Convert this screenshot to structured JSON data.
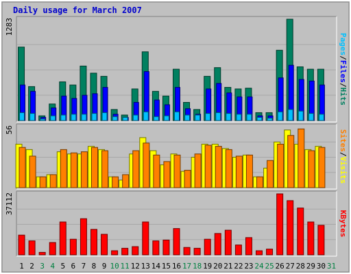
{
  "title": "Daily usage for March 2007",
  "colors": {
    "background": "#c0c0c0",
    "frame_light": "#ffffff",
    "frame_dark": "#808080",
    "title": "#0000cc",
    "hits": "#008060",
    "files": "#0000ff",
    "pages": "#00c0ff",
    "visits": "#ffff00",
    "sites": "#ff8000",
    "kbytes": "#ff0000",
    "weekday_label": "#000000",
    "weekend_label": "#008040"
  },
  "chart_data": [
    {
      "type": "bar",
      "panel": "hits-files-pages",
      "ymax_label": "1283",
      "ylim": [
        0,
        1283
      ],
      "grid": true,
      "legend": [
        {
          "text": "Pages",
          "color_key": "pages"
        },
        {
          "text": "/",
          "color_key": "weekday_label"
        },
        {
          "text": "Files",
          "color_key": "files"
        },
        {
          "text": "/",
          "color_key": "weekday_label"
        },
        {
          "text": "Hits",
          "color_key": "hits"
        }
      ],
      "series": [
        {
          "name": "Hits",
          "color_key": "hits",
          "values": [
            930,
            430,
            60,
            210,
            490,
            450,
            690,
            600,
            560,
            140,
            70,
            400,
            870,
            370,
            310,
            650,
            230,
            140,
            560,
            670,
            420,
            400,
            410,
            100,
            100,
            890,
            1283,
            680,
            650,
            650,
            0
          ]
        },
        {
          "name": "Files",
          "color_key": "files",
          "values": [
            450,
            370,
            40,
            160,
            310,
            280,
            320,
            340,
            420,
            80,
            40,
            230,
            620,
            260,
            200,
            420,
            150,
            80,
            400,
            470,
            350,
            300,
            300,
            60,
            60,
            540,
            700,
            520,
            500,
            450,
            0
          ]
        },
        {
          "name": "Pages",
          "color_key": "pages",
          "values": [
            100,
            90,
            20,
            60,
            70,
            80,
            80,
            90,
            100,
            50,
            40,
            70,
            110,
            50,
            60,
            110,
            70,
            70,
            90,
            100,
            90,
            80,
            80,
            40,
            30,
            110,
            140,
            120,
            90,
            80,
            0
          ]
        }
      ]
    },
    {
      "type": "bar",
      "panel": "visits-sites",
      "ymax_label": "56",
      "ylim": [
        0,
        56
      ],
      "grid": true,
      "legend": [
        {
          "text": "Sites",
          "color_key": "sites"
        },
        {
          "text": "/",
          "color_key": "weekday_label"
        },
        {
          "text": "Visits",
          "color_key": "visits"
        }
      ],
      "series": [
        {
          "name": "Visits",
          "color_key": "visits",
          "values": [
            40,
            35,
            10,
            12,
            33,
            31,
            31,
            38,
            35,
            10,
            7,
            31,
            46,
            34,
            21,
            31,
            15,
            28,
            40,
            40,
            36,
            28,
            30,
            10,
            18,
            42,
            53,
            40,
            35,
            38,
            0
          ]
        },
        {
          "name": "Sites",
          "color_key": "sites",
          "values": [
            37,
            29,
            10,
            12,
            35,
            32,
            33,
            37,
            34,
            10,
            12,
            34,
            41,
            30,
            24,
            30,
            16,
            31,
            39,
            38,
            35,
            29,
            30,
            10,
            25,
            40,
            48,
            54,
            34,
            37,
            0
          ]
        }
      ]
    },
    {
      "type": "bar",
      "panel": "kbytes",
      "ymax_label": "37112",
      "ylim": [
        0,
        37112
      ],
      "grid": true,
      "legend": [
        {
          "text": "KBytes",
          "color_key": "kbytes"
        }
      ],
      "series": [
        {
          "name": "KBytes",
          "color_key": "kbytes",
          "values": [
            12000,
            8500,
            1500,
            7500,
            20000,
            9500,
            22000,
            15500,
            12500,
            2500,
            4000,
            5000,
            20000,
            8500,
            9000,
            16000,
            4500,
            4000,
            9500,
            13000,
            15000,
            6000,
            10500,
            2500,
            3500,
            37112,
            33000,
            28500,
            20000,
            18000,
            0
          ]
        }
      ]
    }
  ],
  "x_axis": {
    "labels": [
      "1",
      "2",
      "3",
      "4",
      "5",
      "6",
      "7",
      "8",
      "9",
      "10",
      "11",
      "12",
      "13",
      "14",
      "15",
      "16",
      "17",
      "18",
      "19",
      "20",
      "21",
      "22",
      "23",
      "24",
      "25",
      "26",
      "27",
      "28",
      "29",
      "30",
      "31"
    ],
    "weekend": [
      false,
      false,
      true,
      true,
      false,
      false,
      false,
      false,
      false,
      true,
      true,
      false,
      false,
      false,
      false,
      false,
      true,
      true,
      false,
      false,
      false,
      false,
      false,
      true,
      true,
      false,
      false,
      false,
      false,
      false,
      true
    ]
  }
}
